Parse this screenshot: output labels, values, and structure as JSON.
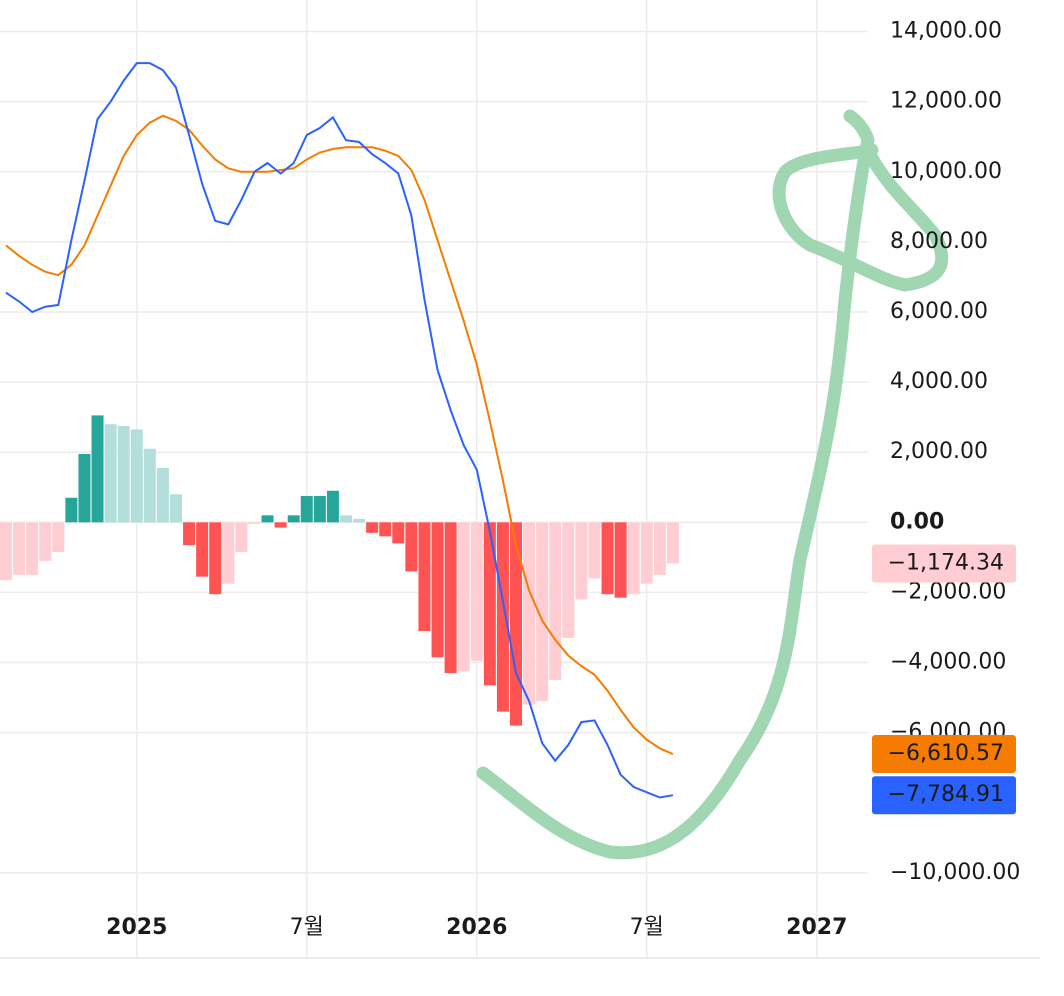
{
  "chart_data": {
    "type": "line",
    "categories": [
      null,
      null,
      null,
      null,
      null,
      null,
      null,
      null,
      null,
      null,
      "2025",
      null,
      null,
      null,
      null,
      null,
      null,
      null,
      null,
      null,
      null,
      null,
      null,
      "7월",
      null,
      null,
      null,
      null,
      null,
      null,
      null,
      null,
      null,
      null,
      null,
      null,
      "2026",
      null,
      null,
      null,
      null,
      null,
      null,
      null,
      null,
      null,
      null,
      null,
      null,
      "7월",
      null,
      null,
      null,
      null,
      null,
      null,
      null,
      null,
      null,
      null,
      null,
      null,
      "2027",
      null,
      null,
      null,
      null
    ],
    "ylim": [
      -12200,
      14900
    ],
    "yticks": [
      {
        "value": 14000,
        "label": "14,000.00"
      },
      {
        "value": 12000,
        "label": "12,000.00"
      },
      {
        "value": 10000,
        "label": "10,000.00"
      },
      {
        "value": 8000,
        "label": "8,000.00"
      },
      {
        "value": 6000,
        "label": "6,000.00"
      },
      {
        "value": 4000,
        "label": "4,000.00"
      },
      {
        "value": 2000,
        "label": "2,000.00"
      },
      {
        "value": 0,
        "label": "0.00"
      },
      {
        "value": -2000,
        "label": "−2,000.00"
      },
      {
        "value": -4000,
        "label": "−4,000.00"
      },
      {
        "value": -6000,
        "label": "−6,000.00"
      },
      {
        "value": -10000,
        "label": "−10,000.00"
      }
    ],
    "grid": true,
    "series": [
      {
        "type": "bar",
        "color": "#ffcdd2",
        "colors": [
          "#26a69a",
          "#b2dfdb",
          "#ffcdd2",
          "#ff5252"
        ],
        "last_label": "−1,174.34",
        "values": [
          -1650,
          -1500,
          -1500,
          -1100,
          -850,
          700,
          1950,
          3050,
          2800,
          2750,
          2650,
          2100,
          1550,
          800,
          -650,
          -1550,
          -2050,
          -1750,
          -850,
          -50,
          200,
          -150,
          200,
          750,
          750,
          900,
          200,
          100,
          -300,
          -400,
          -600,
          -1400,
          -3100,
          -3850,
          -4300,
          -4250,
          -3950,
          -4650,
          -5400,
          -5800,
          -5200,
          -5100,
          -4500,
          -3300,
          -2200,
          -1600,
          -2050,
          -2150,
          -2050,
          -1750,
          -1500,
          -1174.34,
          null,
          null,
          null,
          null,
          null,
          null,
          null,
          null,
          null,
          null,
          null,
          null,
          null,
          null,
          null
        ]
      },
      {
        "type": "line",
        "color": "#f57c00",
        "last_label": "−6,610.57",
        "values": [
          7900,
          7600,
          7350,
          7150,
          7050,
          7350,
          7900,
          8750,
          9600,
          10450,
          11050,
          11400,
          11600,
          11450,
          11200,
          10750,
          10350,
          10100,
          10000,
          10000,
          10000,
          10050,
          10100,
          10350,
          10550,
          10650,
          10700,
          10700,
          10700,
          10600,
          10450,
          10050,
          9200,
          8050,
          6900,
          5750,
          4500,
          2900,
          1200,
          -650,
          -1950,
          -2800,
          -3350,
          -3800,
          -4100,
          -4350,
          -4800,
          -5350,
          -5850,
          -6200,
          -6450,
          -6610.57,
          null,
          null,
          null,
          null,
          null,
          null,
          null,
          null,
          null,
          null,
          null,
          null,
          null,
          null,
          null
        ]
      },
      {
        "type": "line",
        "color": "#2962ff",
        "last_label": "−7,784.91",
        "values": [
          6550,
          6300,
          6000,
          6150,
          6200,
          8050,
          9750,
          11500,
          12000,
          12600,
          13100,
          13100,
          12900,
          12400,
          11050,
          9650,
          8600,
          8500,
          9200,
          10000,
          10250,
          9950,
          10250,
          11050,
          11250,
          11550,
          10900,
          10850,
          10500,
          10250,
          9950,
          8750,
          6350,
          4350,
          3200,
          2200,
          1500,
          -250,
          -2250,
          -4300,
          -5100,
          -6300,
          -6800,
          -6350,
          -5700,
          -5650,
          -6350,
          -7200,
          -7550,
          -7700,
          -7850,
          -7784.91,
          null,
          null,
          null,
          null,
          null,
          null,
          null,
          null,
          null,
          null,
          null,
          null,
          null,
          null,
          null
        ]
      }
    ]
  }
}
